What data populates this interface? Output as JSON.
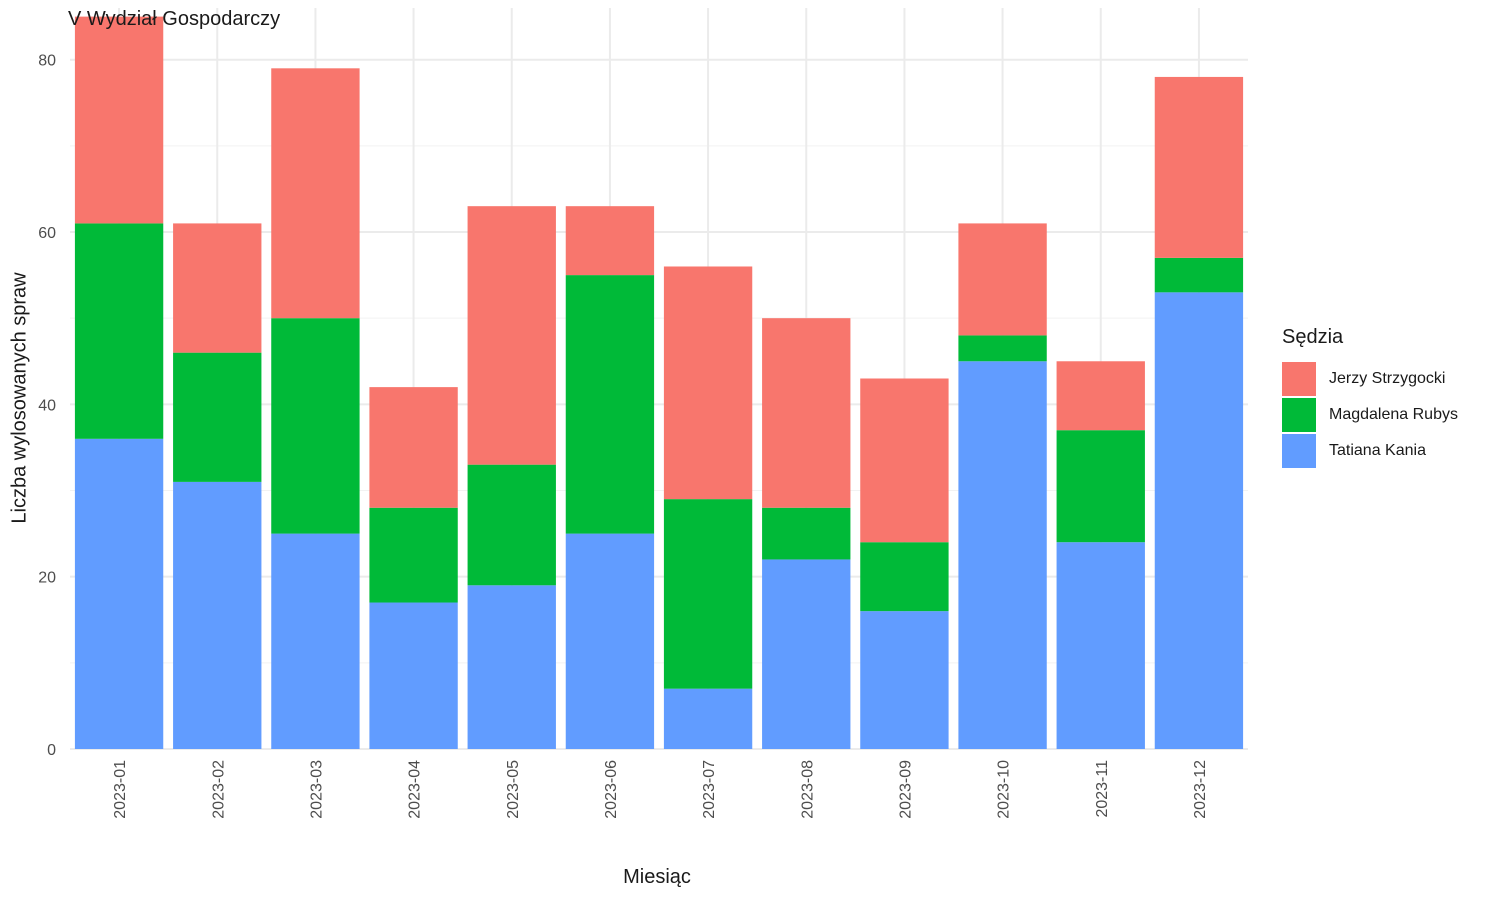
{
  "chart_data": {
    "type": "bar",
    "stacked": true,
    "title": "V Wydział Gospodarczy",
    "xlabel": "Miesiąc",
    "ylabel": "Liczba wylosowanych spraw",
    "ylim": [
      0,
      86
    ],
    "yticks": [
      0,
      20,
      40,
      60,
      80
    ],
    "grid": true,
    "legend_placement": "right",
    "legend_title": "Sędzia",
    "categories": [
      "2023-01",
      "2023-02",
      "2023-03",
      "2023-04",
      "2023-05",
      "2023-06",
      "2023-07",
      "2023-08",
      "2023-09",
      "2023-10",
      "2023-11",
      "2023-12"
    ],
    "series": [
      {
        "name": "Tatiana Kania",
        "color": "#619CFF",
        "values": [
          36,
          31,
          25,
          17,
          19,
          25,
          7,
          22,
          16,
          45,
          24,
          53
        ]
      },
      {
        "name": "Magdalena Rubys",
        "color": "#00BA38",
        "values": [
          25,
          15,
          25,
          11,
          14,
          30,
          22,
          6,
          8,
          3,
          13,
          4
        ]
      },
      {
        "name": "Jerzy Strzygocki",
        "color": "#F8766D",
        "values": [
          24,
          15,
          29,
          14,
          30,
          8,
          27,
          22,
          19,
          13,
          8,
          21
        ]
      }
    ]
  }
}
